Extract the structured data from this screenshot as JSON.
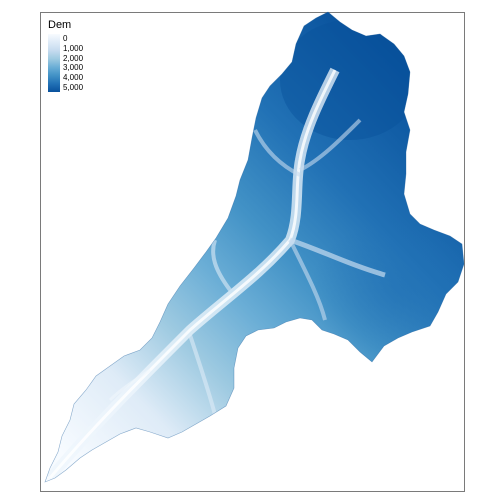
{
  "legend": {
    "title": "Dem",
    "labels": [
      "0",
      "1,000",
      "2,000",
      "3,000",
      "4,000",
      "5,000"
    ],
    "color_low": "#f7fbff",
    "color_high": "#08519c"
  },
  "colors": {
    "frame_border": "#7a7a7a",
    "scale": [
      "#f7fbff",
      "#deebf7",
      "#c6dbef",
      "#9ecae1",
      "#6baed6",
      "#4292c6",
      "#2171b5",
      "#08519c"
    ]
  }
}
